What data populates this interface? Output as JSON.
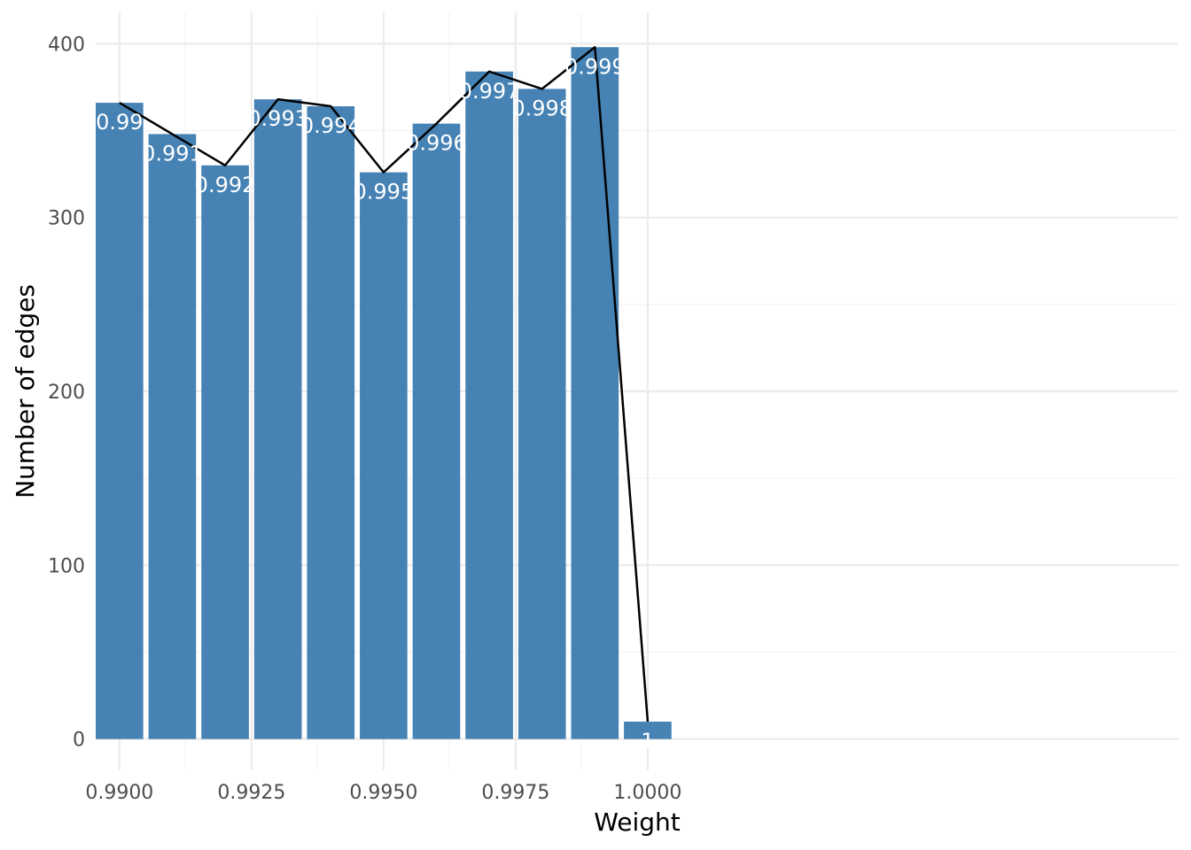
{
  "chart_data": {
    "type": "bar",
    "title": "",
    "xlabel": "Weight",
    "ylabel": "Number of edges",
    "x": [
      0.99,
      0.991,
      0.992,
      0.993,
      0.994,
      0.995,
      0.996,
      0.997,
      0.998,
      0.999,
      1.0
    ],
    "values": [
      366,
      348,
      330,
      368,
      364,
      326,
      354,
      384,
      374,
      398,
      10
    ],
    "bar_labels": [
      "0.99",
      "0.991",
      "0.992",
      "0.993",
      "0.994",
      "0.995",
      "0.996",
      "0.997",
      "0.998",
      "0.999",
      "1"
    ],
    "overlay_line": {
      "type": "line",
      "x": [
        0.99,
        0.991,
        0.992,
        0.993,
        0.994,
        0.995,
        0.996,
        0.997,
        0.998,
        0.999,
        1.0
      ],
      "values": [
        366,
        348,
        330,
        368,
        364,
        326,
        354,
        384,
        374,
        398,
        10
      ],
      "color": "#000000"
    },
    "xlim": [
      0.98955,
      1.01005
    ],
    "ylim": [
      -18,
      418
    ],
    "x_ticks": [
      0.99,
      0.9925,
      0.995,
      0.9975,
      1.0
    ],
    "x_tick_labels": [
      "0.9900",
      "0.9925",
      "0.9950",
      "0.9975",
      "1.0000"
    ],
    "y_ticks": [
      0,
      100,
      200,
      300,
      400
    ],
    "y_tick_labels": [
      "0",
      "100",
      "200",
      "300",
      "400"
    ],
    "grid": true,
    "legend": "none",
    "colors": {
      "bar": "#4682B4",
      "bar_label": "#FFFFFF",
      "line": "#000000",
      "grid_major": "#EBEBEB",
      "grid_minor": "#F3F3F3",
      "tick_label": "#4D4D4D",
      "axis_title": "#000000"
    }
  }
}
